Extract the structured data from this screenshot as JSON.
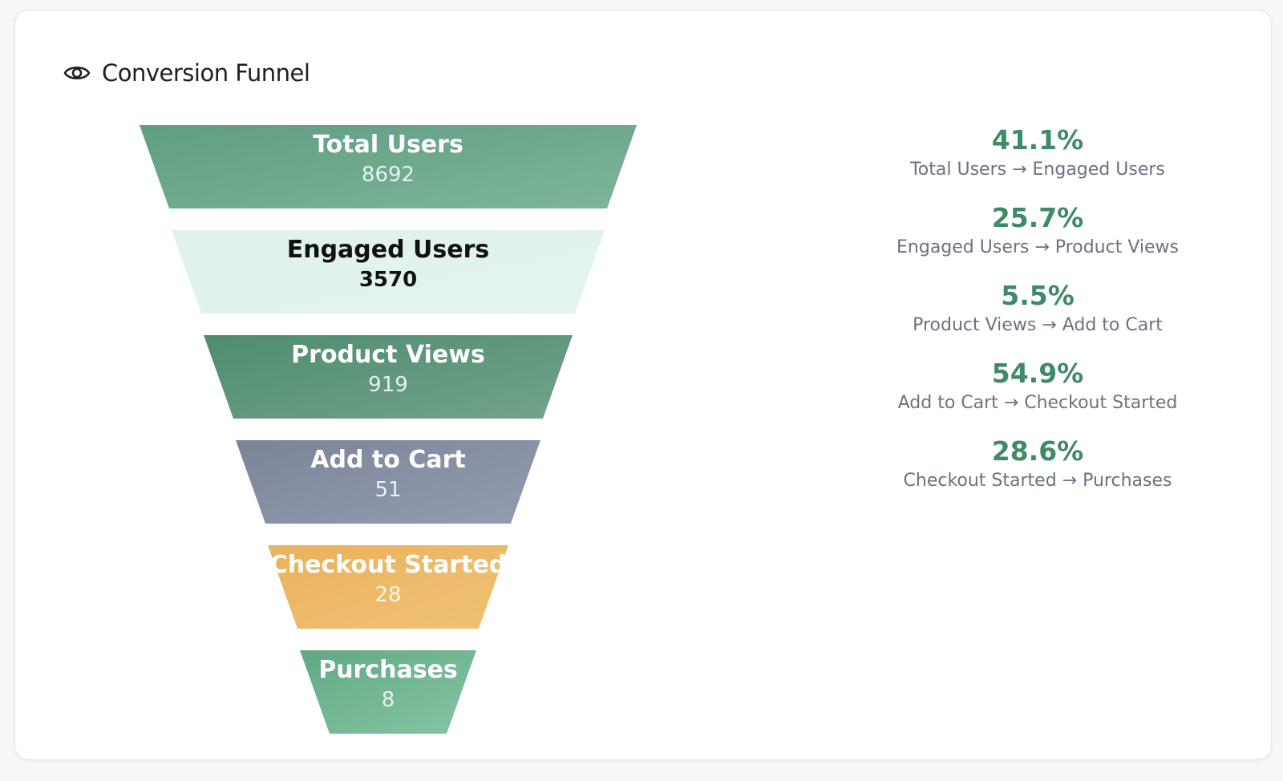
{
  "header": {
    "title": "Conversion Funnel",
    "icon": "eye-icon"
  },
  "chart_data": {
    "type": "funnel",
    "title": "Conversion Funnel",
    "stages": [
      {
        "name": "Total Users",
        "value": 8692,
        "colors": [
          "#5f9e80",
          "#7fb59a"
        ],
        "text_color": "#ffffff",
        "value_color": "#e6f2ec"
      },
      {
        "name": "Engaged Users",
        "value": 3570,
        "colors": [
          "#dff3ea",
          "#e3f4ed"
        ],
        "text_color": "#111111",
        "value_color": "#111111"
      },
      {
        "name": "Product Views",
        "value": 919,
        "colors": [
          "#4f8c6e",
          "#73a38b"
        ],
        "text_color": "#ffffff",
        "value_color": "#e6f2ec"
      },
      {
        "name": "Add to Cart",
        "value": 51,
        "colors": [
          "#7a8499",
          "#959db0"
        ],
        "text_color": "#ffffff",
        "value_color": "#eef0f4"
      },
      {
        "name": "Checkout Started",
        "value": 28,
        "colors": [
          "#e9b25e",
          "#f0c274"
        ],
        "text_color": "#ffffff",
        "value_color": "#fdf3e2"
      },
      {
        "name": "Purchases",
        "value": 8,
        "colors": [
          "#62a784",
          "#86c7a5"
        ],
        "text_color": "#ffffff",
        "value_color": "#e6f2ec"
      }
    ],
    "conversion_rates": [
      {
        "rate": "41.1%",
        "label": "Total Users → Engaged Users"
      },
      {
        "rate": "25.7%",
        "label": "Engaged Users → Product Views"
      },
      {
        "rate": "5.5%",
        "label": "Product Views → Add to Cart"
      },
      {
        "rate": "54.9%",
        "label": "Add to Cart → Checkout Started"
      },
      {
        "rate": "28.6%",
        "label": "Checkout Started → Purchases"
      }
    ],
    "accent_color": "#3f8a68"
  }
}
